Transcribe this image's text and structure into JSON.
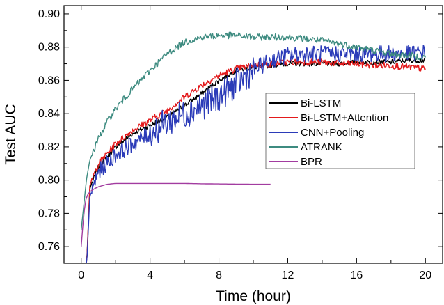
{
  "chart_data": {
    "type": "line",
    "xlabel": "Time (hour)",
    "ylabel": "Test AUC",
    "xlim": [
      -1,
      21
    ],
    "ylim": [
      0.75,
      0.905
    ],
    "xticks": [
      0,
      4,
      8,
      12,
      16,
      20
    ],
    "xtick_labels": [
      "0",
      "4",
      "8",
      "12",
      "16",
      "20"
    ],
    "yticks": [
      0.76,
      0.78,
      0.8,
      0.82,
      0.84,
      0.86,
      0.88,
      0.9
    ],
    "ytick_labels": [
      "0.76",
      "0.78",
      "0.80",
      "0.82",
      "0.84",
      "0.86",
      "0.88",
      "0.90"
    ],
    "grid": false,
    "legend_position": "center-right",
    "series": [
      {
        "name": "Bi-LSTM",
        "color": "#000000",
        "noise": 0.0015,
        "x": [
          0.3,
          0.5,
          1,
          2,
          3,
          4,
          5,
          6,
          7,
          8,
          9,
          10,
          11,
          12,
          13,
          14,
          15,
          16,
          17,
          18,
          19,
          20
        ],
        "y": [
          0.745,
          0.795,
          0.808,
          0.82,
          0.828,
          0.833,
          0.838,
          0.845,
          0.852,
          0.86,
          0.866,
          0.868,
          0.869,
          0.87,
          0.87,
          0.87,
          0.87,
          0.871,
          0.871,
          0.871,
          0.872,
          0.872
        ]
      },
      {
        "name": "Bi-LSTM+Attention",
        "color": "#e31a1c",
        "noise": 0.002,
        "x": [
          0.3,
          0.5,
          1,
          2,
          3,
          4,
          5,
          6,
          7,
          8,
          9,
          10,
          11,
          12,
          13,
          14,
          15,
          16,
          17,
          18,
          19,
          20
        ],
        "y": [
          0.745,
          0.797,
          0.81,
          0.822,
          0.83,
          0.836,
          0.842,
          0.85,
          0.857,
          0.863,
          0.867,
          0.869,
          0.87,
          0.871,
          0.871,
          0.871,
          0.87,
          0.87,
          0.869,
          0.869,
          0.868,
          0.867
        ]
      },
      {
        "name": "CNN+Pooling",
        "color": "#2b3bb8",
        "noise": 0.005,
        "x": [
          0.3,
          0.5,
          1,
          2,
          3,
          4,
          5,
          6,
          7,
          8,
          9,
          10,
          11,
          12,
          13,
          14,
          15,
          16,
          17,
          18,
          19,
          20
        ],
        "y": [
          0.745,
          0.79,
          0.805,
          0.815,
          0.822,
          0.828,
          0.835,
          0.84,
          0.845,
          0.85,
          0.858,
          0.866,
          0.872,
          0.875,
          0.876,
          0.876,
          0.876,
          0.876,
          0.876,
          0.876,
          0.876,
          0.877
        ]
      },
      {
        "name": "ATRANK",
        "color": "#3d8b80",
        "noise": 0.002,
        "x": [
          0,
          0.3,
          0.5,
          1,
          1.5,
          2,
          3,
          4,
          5,
          6,
          7,
          8,
          9,
          10,
          11,
          12,
          13,
          14,
          15,
          16,
          17,
          18,
          19,
          20
        ],
        "y": [
          0.77,
          0.8,
          0.812,
          0.825,
          0.835,
          0.843,
          0.855,
          0.866,
          0.876,
          0.883,
          0.886,
          0.887,
          0.887,
          0.886,
          0.886,
          0.886,
          0.885,
          0.884,
          0.882,
          0.88,
          0.878,
          0.876,
          0.875,
          0.874
        ]
      },
      {
        "name": "BPR",
        "color": "#a23ca0",
        "noise": 0.0,
        "x": [
          0,
          0.15,
          0.3,
          0.5,
          0.8,
          1,
          1.5,
          2,
          2.5,
          3,
          4,
          5,
          6,
          7,
          8,
          9,
          10,
          11
        ],
        "y": [
          0.76,
          0.78,
          0.79,
          0.793,
          0.795,
          0.796,
          0.7975,
          0.798,
          0.798,
          0.798,
          0.798,
          0.798,
          0.798,
          0.7978,
          0.7977,
          0.7976,
          0.7975,
          0.7975
        ]
      }
    ]
  }
}
